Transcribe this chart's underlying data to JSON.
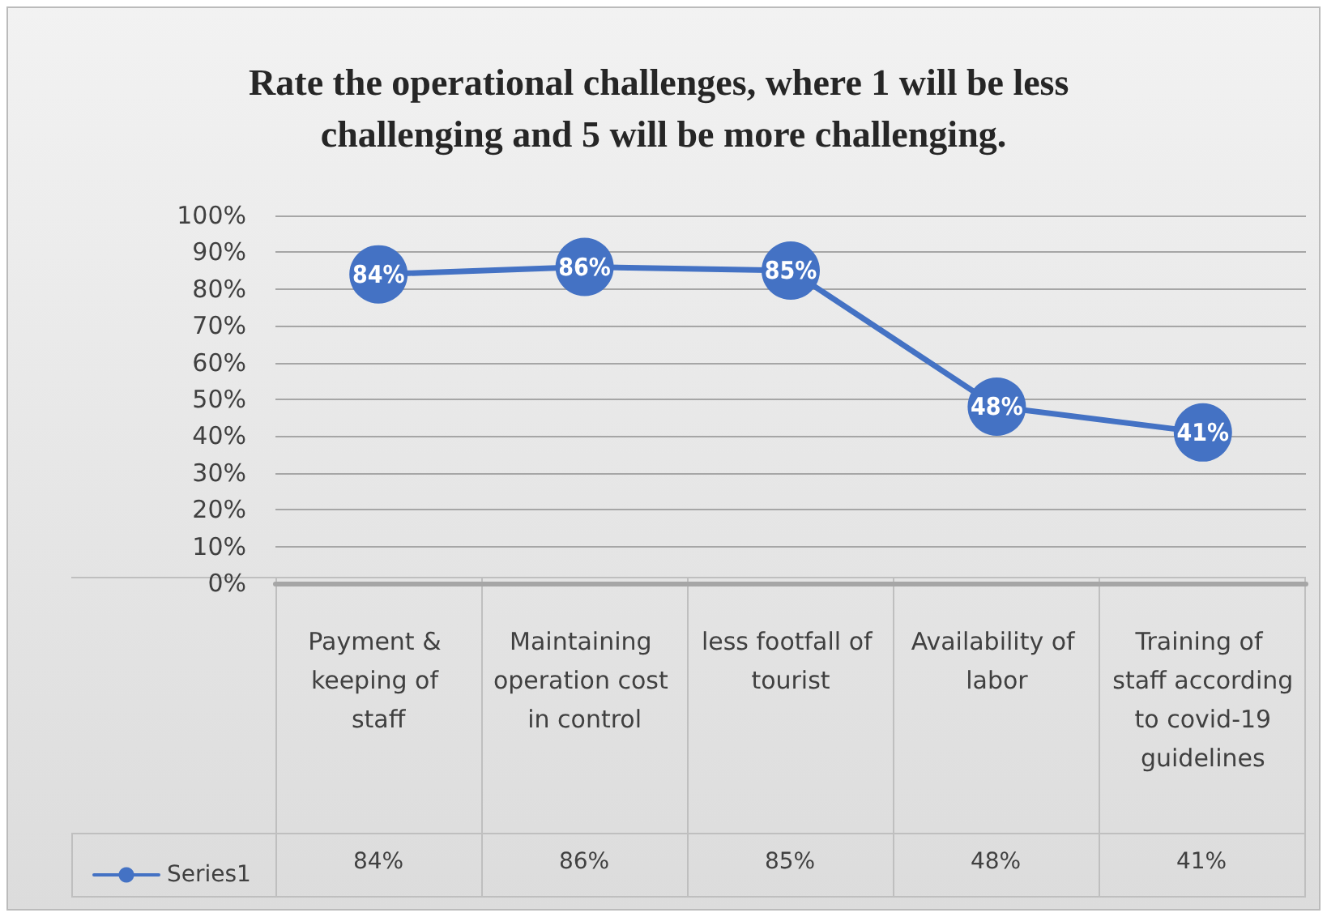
{
  "chart_data": {
    "type": "line",
    "title": "Rate the operational challenges, where 1 will be less challenging and 5 will be more challenging.",
    "categories": [
      "Payment & keeping of staff",
      "Maintaining operation cost in control",
      "less footfall of tourist",
      "Availability of labor",
      "Training of staff according to covid-19 guidelines"
    ],
    "series": [
      {
        "name": "Series1",
        "color": "#4472c4",
        "values": [
          84,
          86,
          85,
          48,
          41
        ],
        "value_labels": [
          "84%",
          "86%",
          "85%",
          "48%",
          "41%"
        ]
      }
    ],
    "ylim": [
      0,
      100
    ],
    "yticks": [
      {
        "value": 0,
        "label": "0%"
      },
      {
        "value": 10,
        "label": "10%"
      },
      {
        "value": 20,
        "label": "20%"
      },
      {
        "value": 30,
        "label": "30%"
      },
      {
        "value": 40,
        "label": "40%"
      },
      {
        "value": 50,
        "label": "50%"
      },
      {
        "value": 60,
        "label": "60%"
      },
      {
        "value": 70,
        "label": "70%"
      },
      {
        "value": 80,
        "label": "80%"
      },
      {
        "value": 90,
        "label": "90%"
      },
      {
        "value": 100,
        "label": "100%"
      }
    ],
    "grid": "y",
    "legend": "bottom left",
    "marker": "circle",
    "line_style": "solid"
  }
}
